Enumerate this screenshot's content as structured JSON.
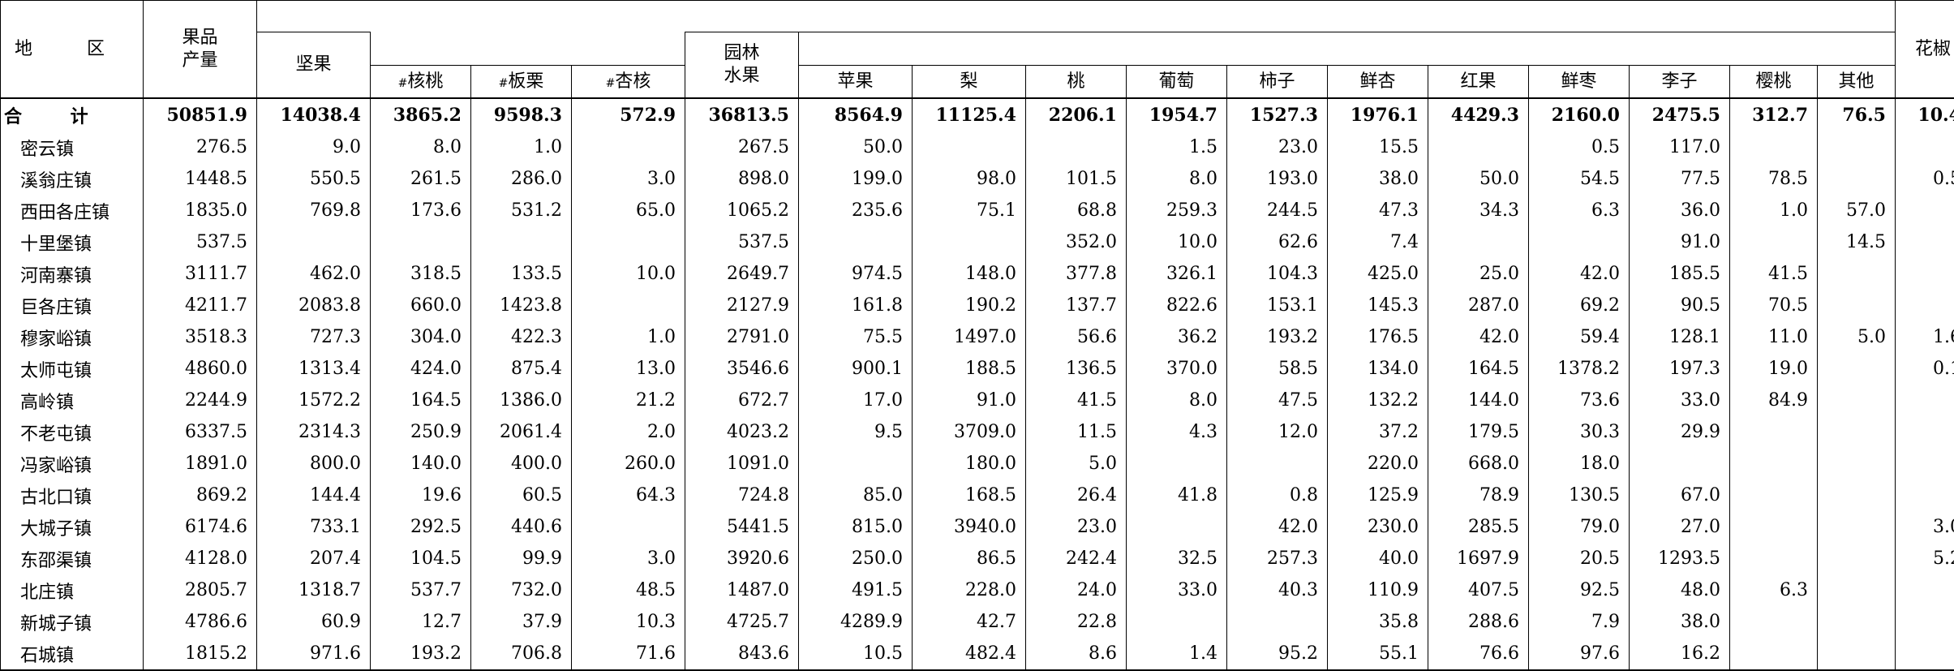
{
  "headers": {
    "region": "地 区",
    "total_output": "果品\n产量",
    "nuts": "坚果",
    "walnut_mark": "#",
    "walnut": "核桃",
    "chestnut_mark": "#",
    "chestnut": "板栗",
    "apricot_kernel_mark": "#",
    "apricot_kernel": "杏核",
    "garden_fruit": "园林\n水果",
    "apple": "苹果",
    "pear": "梨",
    "peach": "桃",
    "grape": "葡萄",
    "persimmon": "柿子",
    "fresh_apricot": "鲜杏",
    "hawthorn": "红果",
    "fresh_jujube": "鲜枣",
    "plum": "李子",
    "cherry": "樱桃",
    "other": "其他",
    "pepper": "花椒"
  },
  "rows": [
    {
      "region": "合 计",
      "v": [
        "50851.9",
        "14038.4",
        "3865.2",
        "9598.3",
        "572.9",
        "36813.5",
        "8564.9",
        "11125.4",
        "2206.1",
        "1954.7",
        "1527.3",
        "1976.1",
        "4429.3",
        "2160.0",
        "2475.5",
        "312.7",
        "76.5",
        "10.4"
      ]
    },
    {
      "region": "密云镇",
      "v": [
        "276.5",
        "9.0",
        "8.0",
        "1.0",
        "",
        "267.5",
        "50.0",
        "",
        "",
        "1.5",
        "23.0",
        "15.5",
        "",
        "0.5",
        "117.0",
        "",
        "",
        ""
      ]
    },
    {
      "region": "溪翁庄镇",
      "v": [
        "1448.5",
        "550.5",
        "261.5",
        "286.0",
        "3.0",
        "898.0",
        "199.0",
        "98.0",
        "101.5",
        "8.0",
        "193.0",
        "38.0",
        "50.0",
        "54.5",
        "77.5",
        "78.5",
        "",
        "0.5"
      ]
    },
    {
      "region": "西田各庄镇",
      "v": [
        "1835.0",
        "769.8",
        "173.6",
        "531.2",
        "65.0",
        "1065.2",
        "235.6",
        "75.1",
        "68.8",
        "259.3",
        "244.5",
        "47.3",
        "34.3",
        "6.3",
        "36.0",
        "1.0",
        "57.0",
        ""
      ]
    },
    {
      "region": "十里堡镇",
      "v": [
        "537.5",
        "",
        "",
        "",
        "",
        "537.5",
        "",
        "",
        "352.0",
        "10.0",
        "62.6",
        "7.4",
        "",
        "",
        "91.0",
        "",
        "14.5",
        ""
      ]
    },
    {
      "region": "河南寨镇",
      "v": [
        "3111.7",
        "462.0",
        "318.5",
        "133.5",
        "10.0",
        "2649.7",
        "974.5",
        "148.0",
        "377.8",
        "326.1",
        "104.3",
        "425.0",
        "25.0",
        "42.0",
        "185.5",
        "41.5",
        "",
        ""
      ]
    },
    {
      "region": "巨各庄镇",
      "v": [
        "4211.7",
        "2083.8",
        "660.0",
        "1423.8",
        "",
        "2127.9",
        "161.8",
        "190.2",
        "137.7",
        "822.6",
        "153.1",
        "145.3",
        "287.0",
        "69.2",
        "90.5",
        "70.5",
        "",
        ""
      ]
    },
    {
      "region": "穆家峪镇",
      "v": [
        "3518.3",
        "727.3",
        "304.0",
        "422.3",
        "1.0",
        "2791.0",
        "75.5",
        "1497.0",
        "56.6",
        "36.2",
        "193.2",
        "176.5",
        "42.0",
        "59.4",
        "128.1",
        "11.0",
        "5.0",
        "1.6"
      ]
    },
    {
      "region": "太师屯镇",
      "v": [
        "4860.0",
        "1313.4",
        "424.0",
        "875.4",
        "13.0",
        "3546.6",
        "900.1",
        "188.5",
        "136.5",
        "370.0",
        "58.5",
        "134.0",
        "164.5",
        "1378.2",
        "197.3",
        "19.0",
        "",
        "0.1"
      ]
    },
    {
      "region": "高岭镇",
      "v": [
        "2244.9",
        "1572.2",
        "164.5",
        "1386.0",
        "21.2",
        "672.7",
        "17.0",
        "91.0",
        "41.5",
        "8.0",
        "47.5",
        "132.2",
        "144.0",
        "73.6",
        "33.0",
        "84.9",
        "",
        ""
      ]
    },
    {
      "region": "不老屯镇",
      "v": [
        "6337.5",
        "2314.3",
        "250.9",
        "2061.4",
        "2.0",
        "4023.2",
        "9.5",
        "3709.0",
        "11.5",
        "4.3",
        "12.0",
        "37.2",
        "179.5",
        "30.3",
        "29.9",
        "",
        "",
        ""
      ]
    },
    {
      "region": "冯家峪镇",
      "v": [
        "1891.0",
        "800.0",
        "140.0",
        "400.0",
        "260.0",
        "1091.0",
        "",
        "180.0",
        "5.0",
        "",
        "",
        "220.0",
        "668.0",
        "18.0",
        "",
        "",
        "",
        ""
      ]
    },
    {
      "region": "古北口镇",
      "v": [
        "869.2",
        "144.4",
        "19.6",
        "60.5",
        "64.3",
        "724.8",
        "85.0",
        "168.5",
        "26.4",
        "41.8",
        "0.8",
        "125.9",
        "78.9",
        "130.5",
        "67.0",
        "",
        "",
        ""
      ]
    },
    {
      "region": "大城子镇",
      "v": [
        "6174.6",
        "733.1",
        "292.5",
        "440.6",
        "",
        "5441.5",
        "815.0",
        "3940.0",
        "23.0",
        "",
        "42.0",
        "230.0",
        "285.5",
        "79.0",
        "27.0",
        "",
        "",
        "3.0"
      ]
    },
    {
      "region": "东邵渠镇",
      "v": [
        "4128.0",
        "207.4",
        "104.5",
        "99.9",
        "3.0",
        "3920.6",
        "250.0",
        "86.5",
        "242.4",
        "32.5",
        "257.3",
        "40.0",
        "1697.9",
        "20.5",
        "1293.5",
        "",
        "",
        "5.2"
      ]
    },
    {
      "region": "北庄镇",
      "v": [
        "2805.7",
        "1318.7",
        "537.7",
        "732.0",
        "48.5",
        "1487.0",
        "491.5",
        "228.0",
        "24.0",
        "33.0",
        "40.3",
        "110.9",
        "407.5",
        "92.5",
        "48.0",
        "6.3",
        "",
        ""
      ]
    },
    {
      "region": "新城子镇",
      "v": [
        "4786.6",
        "60.9",
        "12.7",
        "37.9",
        "10.3",
        "4725.7",
        "4289.9",
        "42.7",
        "22.8",
        "",
        "",
        "35.8",
        "288.6",
        "7.9",
        "38.0",
        "",
        "",
        ""
      ]
    },
    {
      "region": "石城镇",
      "v": [
        "1815.2",
        "971.6",
        "193.2",
        "706.8",
        "71.6",
        "843.6",
        "10.5",
        "482.4",
        "8.6",
        "1.4",
        "95.2",
        "55.1",
        "76.6",
        "97.6",
        "16.2",
        "",
        "",
        ""
      ]
    }
  ]
}
